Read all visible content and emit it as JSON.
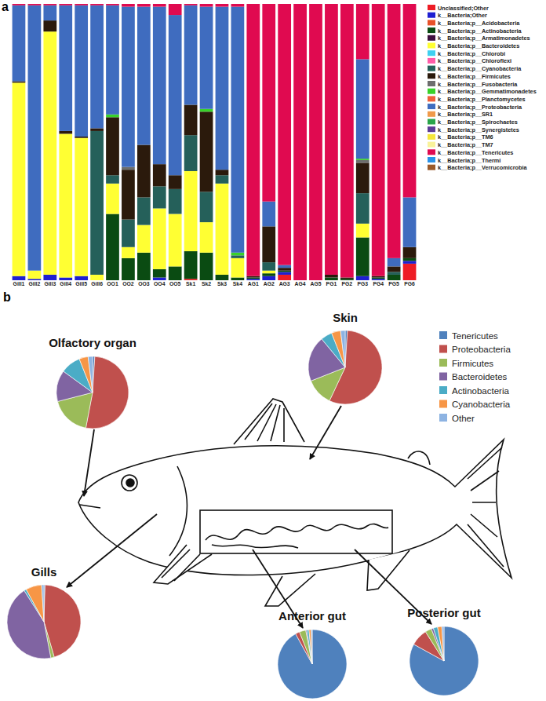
{
  "chart_data": [
    {
      "type": "bar",
      "panel_label": "a",
      "stacked": true,
      "tick_labels": "x",
      "legend": "right",
      "ylim": [
        0,
        100
      ],
      "categories": [
        "Gill1",
        "Gill2",
        "Gill3",
        "Gill4",
        "Gill5",
        "Gill6",
        "OO1",
        "OO2",
        "OO3",
        "OO4",
        "OO5",
        "Sk1",
        "Sk2",
        "Sk3",
        "Sk4",
        "AG1",
        "AG2",
        "AG3",
        "AG4",
        "AG5",
        "PG1",
        "PG2",
        "PG3",
        "PG4",
        "PG5",
        "PG6"
      ],
      "series": [
        {
          "name": "Unclassified;Other",
          "color": "#ee1c25",
          "values": [
            0,
            0,
            0,
            0,
            0,
            0,
            0,
            0,
            0,
            0,
            0,
            0.5,
            0,
            0,
            0,
            0,
            0,
            2,
            0,
            0,
            0,
            0,
            0,
            0,
            0,
            6
          ]
        },
        {
          "name": "k__Bacteria;Other",
          "color": "#1f1fd1",
          "values": [
            1.5,
            0.5,
            2,
            1,
            1.5,
            0,
            0,
            0,
            0,
            1,
            0,
            0,
            0,
            0,
            0,
            0.5,
            1.5,
            1,
            0,
            0,
            0,
            0,
            1.5,
            0.5,
            0,
            1
          ]
        },
        {
          "name": "k__Bacteria;p__Acidobacteria",
          "color": "#e8512a",
          "values": [
            0,
            0,
            0,
            0,
            0,
            0,
            0,
            0,
            0,
            0,
            0,
            0,
            0,
            0,
            0,
            0,
            0,
            0,
            0,
            0,
            0,
            0,
            0,
            0,
            0,
            0
          ]
        },
        {
          "name": "k__Bacteria;p__Actinobacteria",
          "color": "#0a4b12",
          "values": [
            0,
            0,
            0,
            0,
            0,
            0,
            24,
            8,
            10,
            3,
            5,
            10,
            10,
            2,
            1,
            0.5,
            1,
            0.5,
            0,
            0,
            1,
            0.5,
            14,
            0.5,
            2,
            1
          ]
        },
        {
          "name": "k__Bacteria;p__Armatimonadetes",
          "color": "#3f0f3f",
          "values": [
            0,
            0,
            0,
            0,
            0,
            0,
            0,
            0,
            0,
            0,
            0,
            0,
            0,
            0,
            0,
            0,
            0,
            0,
            0,
            0,
            0,
            0,
            0,
            0,
            0,
            0
          ]
        },
        {
          "name": "k__Bacteria;p__Bacteroidetes",
          "color": "#ffff33",
          "values": [
            70,
            3,
            88,
            52,
            50,
            2,
            11,
            4,
            10,
            22,
            19,
            29,
            11,
            33,
            7,
            0,
            1,
            0,
            0,
            0,
            0,
            0,
            5,
            0,
            0,
            0
          ]
        },
        {
          "name": "k__Bacteria;p__Chlorobi",
          "color": "#3fd0f0",
          "values": [
            0,
            0,
            0,
            0,
            0,
            0,
            0,
            0,
            0,
            0,
            0,
            0,
            0,
            0,
            0,
            0,
            0,
            0,
            0,
            0,
            0,
            0,
            0,
            0,
            0,
            0
          ]
        },
        {
          "name": "k__Bacteria;p__Chloroflexi",
          "color": "#ff5ca8",
          "values": [
            0,
            0,
            0,
            0,
            0,
            0,
            0,
            0,
            0,
            0,
            0,
            0,
            0,
            0,
            0,
            0,
            0,
            0,
            0,
            0,
            0,
            0,
            0,
            0,
            0,
            0
          ]
        },
        {
          "name": "k__Bacteria;p__Cyanobacteria",
          "color": "#25605a",
          "values": [
            0,
            0,
            0,
            0,
            0,
            52,
            3,
            10,
            10,
            8,
            9,
            13,
            11,
            3,
            1,
            0,
            3,
            0,
            0,
            0,
            0,
            0,
            11,
            0,
            1,
            0
          ]
        },
        {
          "name": "k__Bacteria;p__Firmicutes",
          "color": "#2b1a0c",
          "values": [
            0.5,
            0,
            4,
            1,
            0.5,
            1,
            21,
            18,
            19,
            8,
            5,
            11,
            29,
            2,
            0,
            0.5,
            13,
            1,
            0,
            0,
            1,
            0.5,
            11,
            0.5,
            2,
            4
          ]
        },
        {
          "name": "k__Bacteria;p__Fusobacteria",
          "color": "#6d6d6d",
          "values": [
            0,
            0,
            0,
            0,
            0,
            0,
            0,
            1,
            0,
            0,
            0,
            0,
            0,
            0,
            0,
            0,
            0,
            0,
            0,
            0,
            0,
            0,
            1,
            0,
            0,
            0
          ]
        },
        {
          "name": "k__Bacteria;p__Gemmatimonadetes",
          "color": "#39d22a",
          "values": [
            0,
            0,
            0,
            0,
            0,
            0,
            1,
            0,
            0,
            0,
            0,
            0,
            1,
            0,
            1,
            0,
            0,
            0,
            0,
            0,
            0,
            0,
            0.5,
            0,
            0,
            0
          ]
        },
        {
          "name": "k__Bacteria;p__Planctomycetes",
          "color": "#f0603a",
          "values": [
            0,
            0,
            0,
            0,
            0,
            0,
            0,
            0,
            0,
            0,
            0,
            0,
            0,
            0,
            0,
            0,
            0,
            0,
            0,
            0,
            0,
            0,
            0,
            0,
            0,
            0
          ]
        },
        {
          "name": "k__Bacteria;p__Proteobacteria",
          "color": "#3f6cbf",
          "values": [
            27.5,
            96,
            5.5,
            45.5,
            47.5,
            44.5,
            39.5,
            58,
            50,
            57,
            58,
            36,
            37,
            59,
            89,
            0,
            9,
            1,
            0,
            0,
            0,
            0,
            36,
            0,
            3,
            18
          ]
        },
        {
          "name": "k__Bacteria;p__SR1",
          "color": "#f09a4a",
          "values": [
            0,
            0,
            0,
            0,
            0,
            0,
            0,
            0,
            0,
            0,
            0,
            0,
            0,
            0,
            0,
            0,
            0,
            0,
            0,
            0,
            0,
            0,
            0,
            0,
            0,
            0
          ]
        },
        {
          "name": "k__Bacteria;p__Spirochaetes",
          "color": "#2aa54a",
          "values": [
            0,
            0,
            0,
            0,
            0,
            0,
            0,
            0,
            0,
            0,
            0,
            0,
            0,
            0,
            0,
            0,
            0,
            0,
            0,
            0,
            0,
            0,
            0,
            0,
            0,
            0
          ]
        },
        {
          "name": "k__Bacteria;p__Synergistetes",
          "color": "#5c3c96",
          "values": [
            0,
            0,
            0,
            0,
            0,
            0,
            0,
            0,
            0,
            0,
            0,
            0,
            0,
            0,
            0,
            0,
            0,
            0,
            0,
            0,
            0,
            0,
            0,
            0,
            0,
            0
          ]
        },
        {
          "name": "k__Bacteria;p__TM6",
          "color": "#f5e63c",
          "values": [
            0,
            0,
            0,
            0,
            0,
            0,
            0,
            0,
            0,
            0,
            0,
            0,
            0,
            0,
            0,
            0,
            0,
            0,
            0,
            0,
            0,
            0,
            0,
            0,
            0,
            0
          ]
        },
        {
          "name": "k__Bacteria;p__TM7",
          "color": "#f9f29a",
          "values": [
            0,
            0,
            0,
            0,
            0,
            0,
            0,
            0,
            0,
            0,
            0,
            0,
            0,
            0,
            0,
            0,
            0,
            0,
            0,
            0,
            0,
            0,
            0,
            0,
            0,
            0
          ]
        },
        {
          "name": "k__Bacteria;p__Tenericutes",
          "color": "#e00a50",
          "values": [
            0.5,
            0.5,
            0.5,
            0.5,
            0.5,
            0.5,
            0.5,
            1,
            1,
            1,
            4,
            0.5,
            1,
            1,
            1,
            98.5,
            71.5,
            94.5,
            100,
            100,
            98,
            99,
            20,
            98.5,
            92,
            70
          ]
        },
        {
          "name": "k__Bacteria;p__Thermi",
          "color": "#2a92e8",
          "values": [
            0,
            0,
            0,
            0,
            0,
            0,
            0,
            0,
            0,
            0,
            0,
            0,
            0,
            0,
            0,
            0,
            0,
            0,
            0,
            0,
            0,
            0,
            0,
            0,
            0,
            0
          ]
        },
        {
          "name": "k__Bacteria;p__Verrucomicrobia",
          "color": "#9a5a2a",
          "values": [
            0,
            0,
            0,
            0,
            0,
            0,
            0,
            0,
            0,
            0,
            0,
            0,
            0,
            0,
            0,
            0,
            0,
            0,
            0,
            0,
            0,
            0,
            0,
            0,
            0,
            0
          ]
        }
      ]
    },
    {
      "type": "pie",
      "panel_label": "b",
      "legend": "right",
      "categories": [
        "Tenericutes",
        "Proteobacteria",
        "Firmicutes",
        "Bacteroidetes",
        "Actinobacteria",
        "Cyanobacteria",
        "Other"
      ],
      "colors": [
        "#4f81bd",
        "#c0504d",
        "#9bbb59",
        "#8064a2",
        "#4bacc6",
        "#f79646",
        "#8db3e2"
      ],
      "series": [
        {
          "name": "Olfactory organ",
          "values": [
            1,
            52,
            18,
            14,
            9,
            4,
            2
          ]
        },
        {
          "name": "Skin",
          "values": [
            1,
            56,
            12,
            20,
            5,
            4,
            2
          ]
        },
        {
          "name": "Gills",
          "values": [
            0.5,
            45,
            1.5,
            44,
            1,
            7,
            1
          ]
        },
        {
          "name": "Anterior gut",
          "values": [
            92,
            2,
            3,
            0.5,
            1,
            1,
            0.5
          ]
        },
        {
          "name": "Posterior gut",
          "values": [
            83,
            8,
            3,
            1,
            2,
            2,
            1
          ]
        }
      ]
    }
  ]
}
